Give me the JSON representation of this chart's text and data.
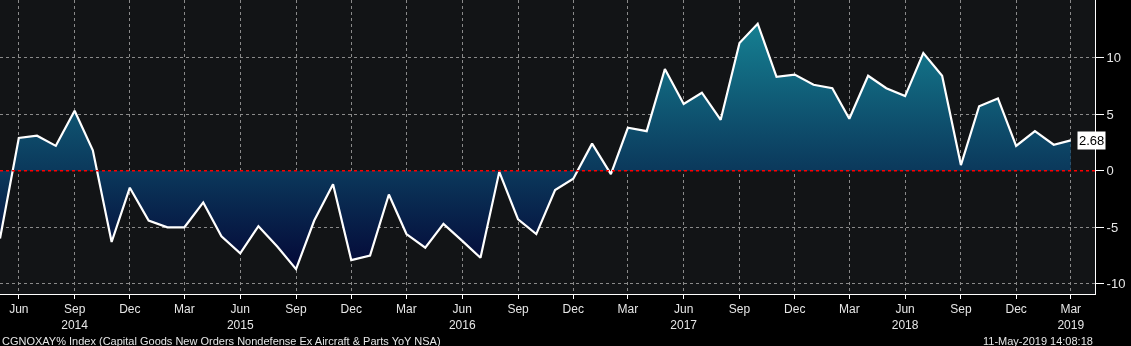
{
  "chart_data": {
    "type": "area",
    "x": [
      "2014-05",
      "2014-06",
      "2014-07",
      "2014-08",
      "2014-09",
      "2014-10",
      "2014-11",
      "2014-12",
      "2015-01",
      "2015-02",
      "2015-03",
      "2015-04",
      "2015-05",
      "2015-06",
      "2015-07",
      "2015-08",
      "2015-09",
      "2015-10",
      "2015-11",
      "2015-12",
      "2016-01",
      "2016-02",
      "2016-03",
      "2016-04",
      "2016-05",
      "2016-06",
      "2016-07",
      "2016-08",
      "2016-09",
      "2016-10",
      "2016-11",
      "2016-12",
      "2017-01",
      "2017-02",
      "2017-03",
      "2017-04",
      "2017-05",
      "2017-06",
      "2017-07",
      "2017-08",
      "2017-09",
      "2017-10",
      "2017-11",
      "2017-12",
      "2018-01",
      "2018-02",
      "2018-03",
      "2018-04",
      "2018-05",
      "2018-06",
      "2018-07",
      "2018-08",
      "2018-09",
      "2018-10",
      "2018-11",
      "2018-12",
      "2019-01",
      "2019-02",
      "2019-03"
    ],
    "series": [
      {
        "color": "#ffffff",
        "values": [
          -6.0,
          2.9,
          3.1,
          2.2,
          5.3,
          1.8,
          -6.3,
          -1.5,
          -4.4,
          -5.0,
          -5.0,
          -2.8,
          -5.8,
          -7.3,
          -4.9,
          -6.7,
          -8.7,
          -4.4,
          -1.2,
          -7.9,
          -7.5,
          -2.1,
          -5.6,
          -6.8,
          -4.7,
          -6.2,
          -7.7,
          -0.1,
          -4.3,
          -5.6,
          -1.7,
          -0.7,
          2.4,
          -0.3,
          3.8,
          3.5,
          9.0,
          5.9,
          6.9,
          4.5,
          11.3,
          13.0,
          8.3,
          8.5,
          7.6,
          7.3,
          4.6,
          8.4,
          7.3,
          6.6,
          10.4,
          8.4,
          0.5,
          5.7,
          6.4,
          2.2,
          3.5,
          2.3,
          2.68
        ],
        "value_labels": [
          null,
          null,
          null,
          null,
          null,
          null,
          null,
          null,
          null,
          null,
          null,
          null,
          null,
          null,
          null,
          null,
          null,
          null,
          null,
          null,
          null,
          null,
          null,
          null,
          null,
          null,
          null,
          null,
          null,
          null,
          null,
          null,
          null,
          null,
          null,
          null,
          null,
          null,
          null,
          null,
          null,
          null,
          null,
          null,
          null,
          null,
          null,
          null,
          null,
          null,
          null,
          null,
          null,
          null,
          null,
          null,
          null,
          null,
          "2.68"
        ]
      }
    ],
    "xlim": [
      "2014-05-01",
      "2019-04-10"
    ],
    "xticks": [
      {
        "value": "2014-06",
        "label": "Jun"
      },
      {
        "value": "2014-09",
        "label": "Sep\n2014"
      },
      {
        "value": "2014-12",
        "label": "Dec"
      },
      {
        "value": "2015-03",
        "label": "Mar"
      },
      {
        "value": "2015-06",
        "label": "Jun\n2015"
      },
      {
        "value": "2015-09",
        "label": "Sep"
      },
      {
        "value": "2015-12",
        "label": "Dec"
      },
      {
        "value": "2016-03",
        "label": "Mar"
      },
      {
        "value": "2016-06",
        "label": "Jun\n2016"
      },
      {
        "value": "2016-09",
        "label": "Sep"
      },
      {
        "value": "2016-12",
        "label": "Dec"
      },
      {
        "value": "2017-03",
        "label": "Mar"
      },
      {
        "value": "2017-06",
        "label": "Jun\n2017"
      },
      {
        "value": "2017-09",
        "label": "Sep"
      },
      {
        "value": "2017-12",
        "label": "Dec"
      },
      {
        "value": "2018-03",
        "label": "Mar"
      },
      {
        "value": "2018-06",
        "label": "Jun\n2018"
      },
      {
        "value": "2018-09",
        "label": "Sep"
      },
      {
        "value": "2018-12",
        "label": "Dec"
      },
      {
        "value": "2019-03",
        "label": "Mar\n2019"
      }
    ],
    "ylim": [
      -10.9,
      15.1
    ],
    "yticks": [
      -10,
      -5,
      0,
      5,
      10
    ],
    "grid": true,
    "line_style": "solid",
    "ref_lines": [
      {
        "axis": "y",
        "value": 0,
        "color": "#ff0000",
        "line_style": "dotted"
      }
    ],
    "annotations": [
      "CGNOXAY% Index (Capital Goods New Orders Nondefense Ex Aircraft & Parts YoY NSA)",
      "11-May-2019 14:08:18"
    ]
  }
}
